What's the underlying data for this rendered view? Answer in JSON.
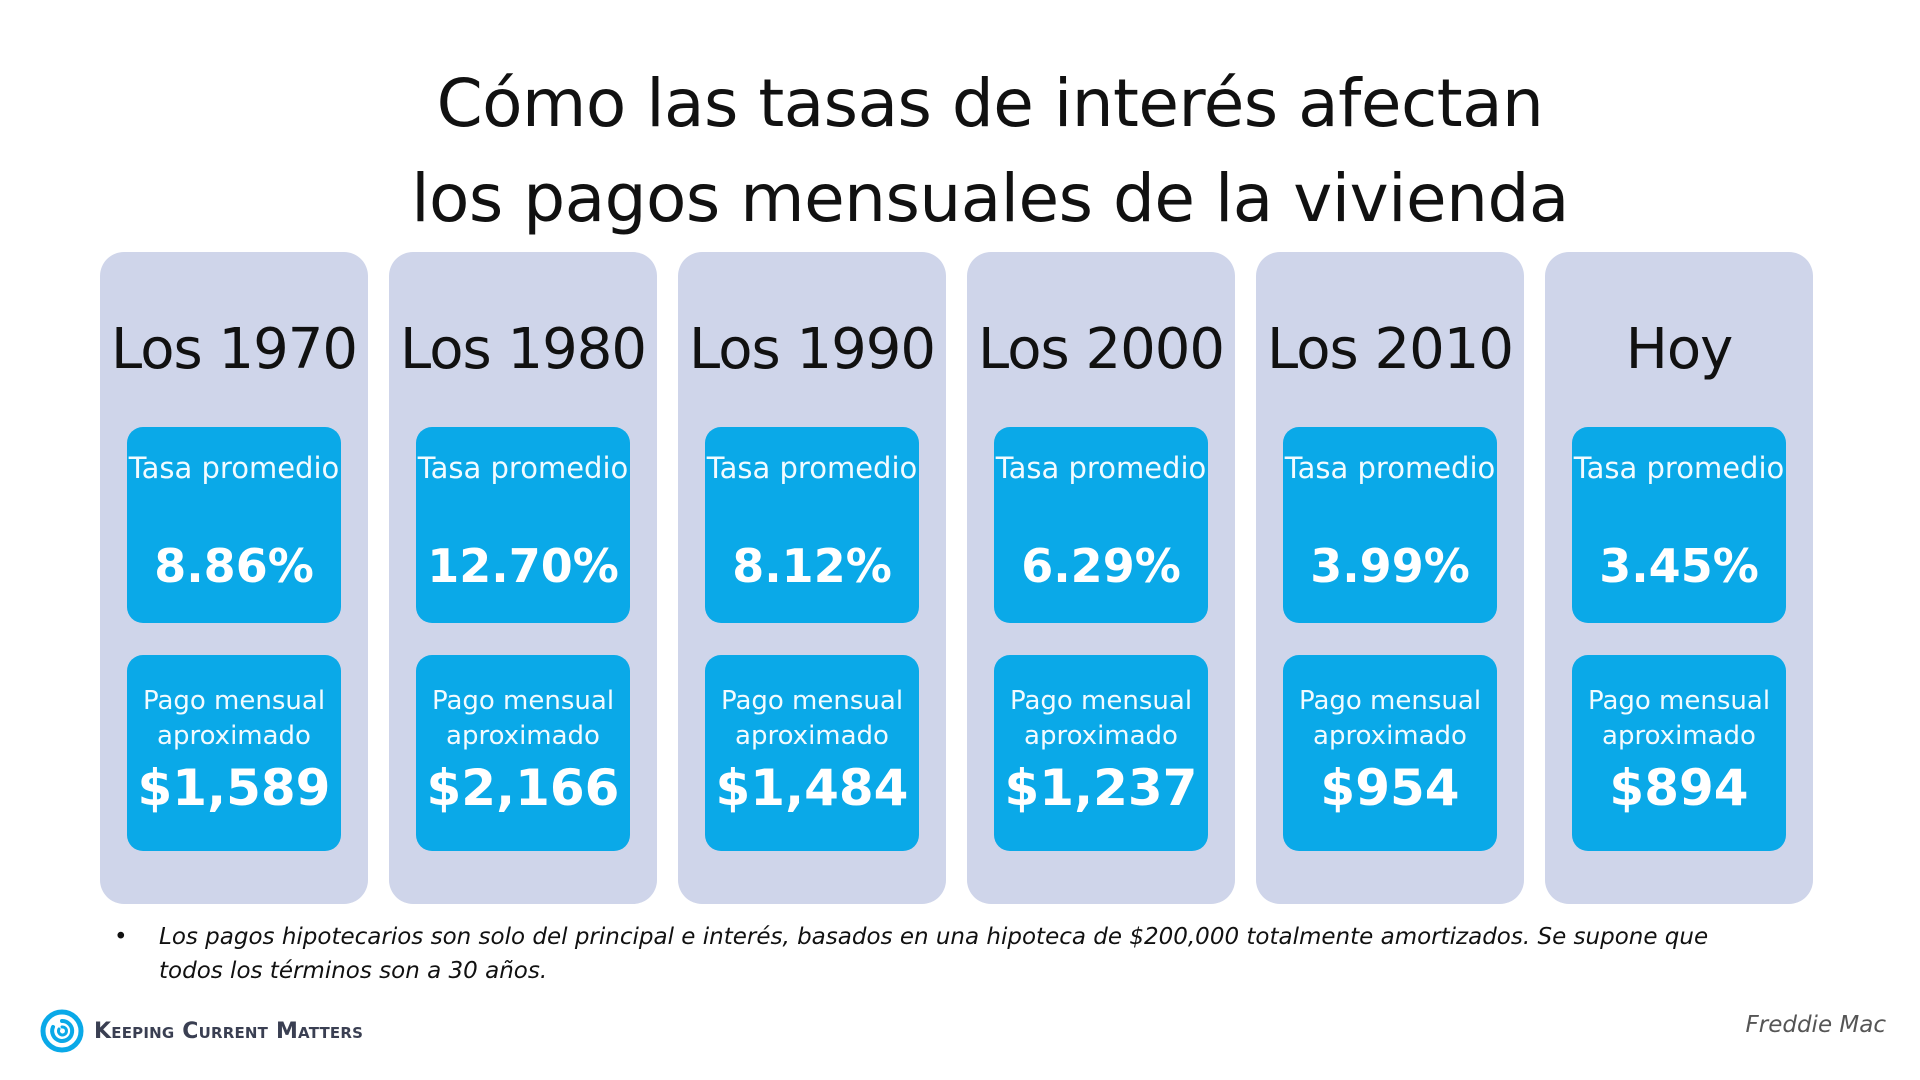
{
  "title": {
    "line1": "Cómo las tasas de interés afectan",
    "line2": "los pagos mensuales de la vivienda"
  },
  "labels": {
    "rate_label": "Tasa promedio",
    "payment_label": "Pago mensual aproximado"
  },
  "chart_data": {
    "type": "table",
    "title": "Cómo las tasas de interés afectan los pagos mensuales de la vivienda",
    "categories": [
      "Los 1970",
      "Los 1980",
      "Los 1990",
      "Los 2000",
      "Los 2010",
      "Hoy"
    ],
    "series": [
      {
        "name": "Tasa promedio",
        "values": [
          8.86,
          12.7,
          8.12,
          6.29,
          3.99,
          3.45
        ],
        "display": [
          "8.86%",
          "12.70%",
          "8.12%",
          "6.29%",
          "3.99%",
          "3.45%"
        ]
      },
      {
        "name": "Pago mensual aproximado",
        "values": [
          1589,
          2166,
          1484,
          1237,
          954,
          894
        ],
        "display": [
          "$1,589",
          "$2,166",
          "$1,484",
          "$1,237",
          "$954",
          "$894"
        ]
      }
    ]
  },
  "footnote": {
    "bullet": "•",
    "text": "Los pagos hipotecarios son solo del principal e interés, basados en una hipoteca de $200,000 totalmente amortizados. Se supone que todos los términos son a 30 años."
  },
  "brand": {
    "name": "Keeping Current Matters",
    "icon": "swirl-logo-icon",
    "color": "#0aa9e8"
  },
  "source": "Freddie Mac",
  "colors": {
    "column_bg": "#cfd5ea",
    "box_bg": "#0aa9e8",
    "text": "#111111"
  }
}
